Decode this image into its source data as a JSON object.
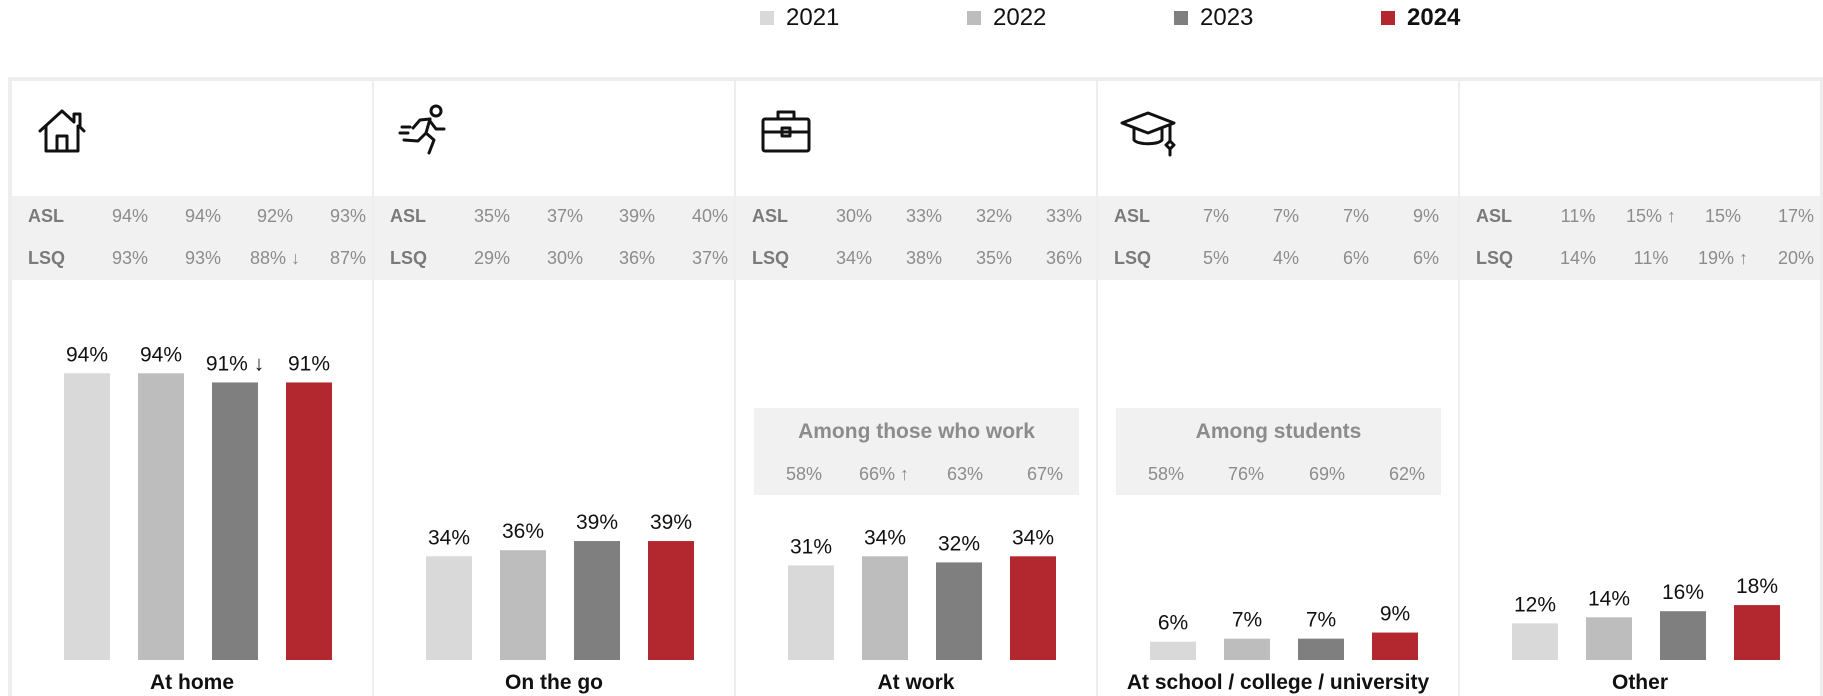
{
  "legend": [
    {
      "label": "2021",
      "color": "#d9d9d9",
      "bold": false
    },
    {
      "label": "2022",
      "color": "#bdbdbd",
      "bold": false
    },
    {
      "label": "2023",
      "color": "#7f7f7f",
      "bold": false
    },
    {
      "label": "2024",
      "color": "#b3282e",
      "bold": true
    }
  ],
  "colors": [
    "#d9d9d9",
    "#bdbdbd",
    "#7f7f7f",
    "#b3282e"
  ],
  "panels": [
    {
      "icon": "house-icon",
      "asl_label": "ASL",
      "lsq_label": "LSQ",
      "asl": [
        "94%",
        "94%",
        "92%",
        "93%"
      ],
      "lsq": [
        "93%",
        "93%",
        "88% ↓",
        "87%"
      ],
      "subset": null
    },
    {
      "icon": "running-person-icon",
      "asl_label": "ASL",
      "lsq_label": "LSQ",
      "asl": [
        "35%",
        "37%",
        "39%",
        "40%"
      ],
      "lsq": [
        "29%",
        "30%",
        "36%",
        "37%"
      ],
      "subset": null
    },
    {
      "icon": "briefcase-icon",
      "asl_label": "ASL",
      "lsq_label": "LSQ",
      "asl": [
        "30%",
        "33%",
        "32%",
        "33%"
      ],
      "lsq": [
        "34%",
        "38%",
        "35%",
        "36%"
      ],
      "subset": {
        "title": "Among those who work",
        "values": [
          "58%",
          "66% ↑",
          "63%",
          "67%"
        ]
      }
    },
    {
      "icon": "graduation-cap-icon",
      "asl_label": "ASL",
      "lsq_label": "LSQ",
      "asl": [
        "7%",
        "7%",
        "7%",
        "9%"
      ],
      "lsq": [
        "5%",
        "4%",
        "6%",
        "6%"
      ],
      "subset": {
        "title": "Among students",
        "values": [
          "58%",
          "76%",
          "69%",
          "62%"
        ]
      }
    },
    {
      "icon": "",
      "asl_label": "ASL",
      "lsq_label": "LSQ",
      "asl": [
        "11%",
        "15% ↑",
        "15%",
        "17%"
      ],
      "lsq": [
        "14%",
        "11%",
        "19% ↑",
        "20%"
      ],
      "subset": null
    }
  ],
  "chart_data": {
    "type": "bar",
    "series_names": [
      "2021",
      "2022",
      "2023",
      "2024"
    ],
    "categories": [
      "At home",
      "On the go",
      "At work",
      "At school / college / university",
      "Other"
    ],
    "values": [
      [
        94,
        94,
        91,
        91
      ],
      [
        34,
        36,
        39,
        39
      ],
      [
        31,
        34,
        32,
        34
      ],
      [
        6,
        7,
        7,
        9
      ],
      [
        12,
        14,
        16,
        18
      ]
    ],
    "labels": [
      [
        "94%",
        "94%",
        "91% ↓",
        "91%"
      ],
      [
        "34%",
        "36%",
        "39%",
        "39%"
      ],
      [
        "31%",
        "34%",
        "32%",
        "34%"
      ],
      [
        "6%",
        "7%",
        "7%",
        "9%"
      ],
      [
        "12%",
        "14%",
        "16%",
        "18%"
      ]
    ],
    "ylim": [
      0,
      100
    ],
    "grid": false,
    "legend_position": "top"
  }
}
